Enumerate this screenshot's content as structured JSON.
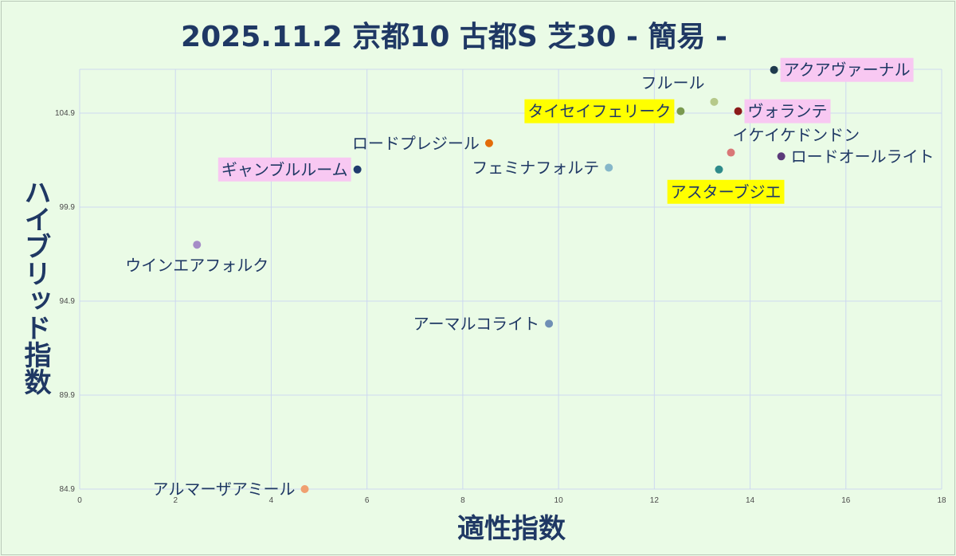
{
  "chart_data": {
    "type": "scatter",
    "title": "2025.11.2 京都10 古都S 芝30 - 簡易 -",
    "xlabel": "適性指数",
    "ylabel": "ハイブリッド指数",
    "xlim": [
      0,
      18
    ],
    "ylim": [
      84.9,
      106.9
    ],
    "x_ticks": [
      "0",
      "2",
      "4",
      "6",
      "8",
      "10",
      "12",
      "14",
      "16",
      "18"
    ],
    "y_ticks": [
      "84.9",
      "89.9",
      "94.9",
      "99.9",
      "104.9"
    ],
    "grid": true,
    "legend": "none",
    "points": [
      {
        "label": "アクアヴァーナル",
        "x": 14.5,
        "y": 107.2,
        "color": "#1f3b4d",
        "highlight": "#f8c8f2",
        "anchor": "right"
      },
      {
        "label": "フルール",
        "x": 13.25,
        "y": 105.5,
        "color": "#b6c98a",
        "highlight": "",
        "anchor": "above-left"
      },
      {
        "label": "タイセイフェリーク",
        "x": 12.55,
        "y": 105.0,
        "color": "#7a9a50",
        "highlight": "#ffff00",
        "anchor": "left"
      },
      {
        "label": "ヴォランテ",
        "x": 13.75,
        "y": 105.0,
        "color": "#8b1a1a",
        "highlight": "#f8c8f2",
        "anchor": "right"
      },
      {
        "label": "ロードプレジール",
        "x": 8.55,
        "y": 103.3,
        "color": "#e36c0a",
        "highlight": "",
        "anchor": "left"
      },
      {
        "label": "イケイケドンドン",
        "x": 13.6,
        "y": 102.8,
        "color": "#d97777",
        "highlight": "",
        "anchor": "above-right"
      },
      {
        "label": "ロードオールライト",
        "x": 14.65,
        "y": 102.6,
        "color": "#5b3a7a",
        "highlight": "",
        "anchor": "right"
      },
      {
        "label": "ギャンブルルーム",
        "x": 5.8,
        "y": 101.9,
        "color": "#1f3b6d",
        "highlight": "#f8c8f2",
        "anchor": "left"
      },
      {
        "label": "フェミナフォルテ",
        "x": 11.05,
        "y": 102.0,
        "color": "#86b7c9",
        "highlight": "",
        "anchor": "left"
      },
      {
        "label": "アスターブジエ",
        "x": 13.35,
        "y": 101.9,
        "color": "#2e8b8b",
        "highlight": "#ffff00",
        "anchor": "below-left"
      },
      {
        "label": "ウインエアフォルク",
        "x": 2.45,
        "y": 97.9,
        "color": "#a58cc7",
        "highlight": "",
        "anchor": "below"
      },
      {
        "label": "アーマルコライト",
        "x": 9.8,
        "y": 93.7,
        "color": "#6f8fb5",
        "highlight": "",
        "anchor": "left"
      },
      {
        "label": "アルマーザアミール",
        "x": 4.7,
        "y": 84.9,
        "color": "#f0a070",
        "highlight": "",
        "anchor": "left"
      }
    ]
  }
}
